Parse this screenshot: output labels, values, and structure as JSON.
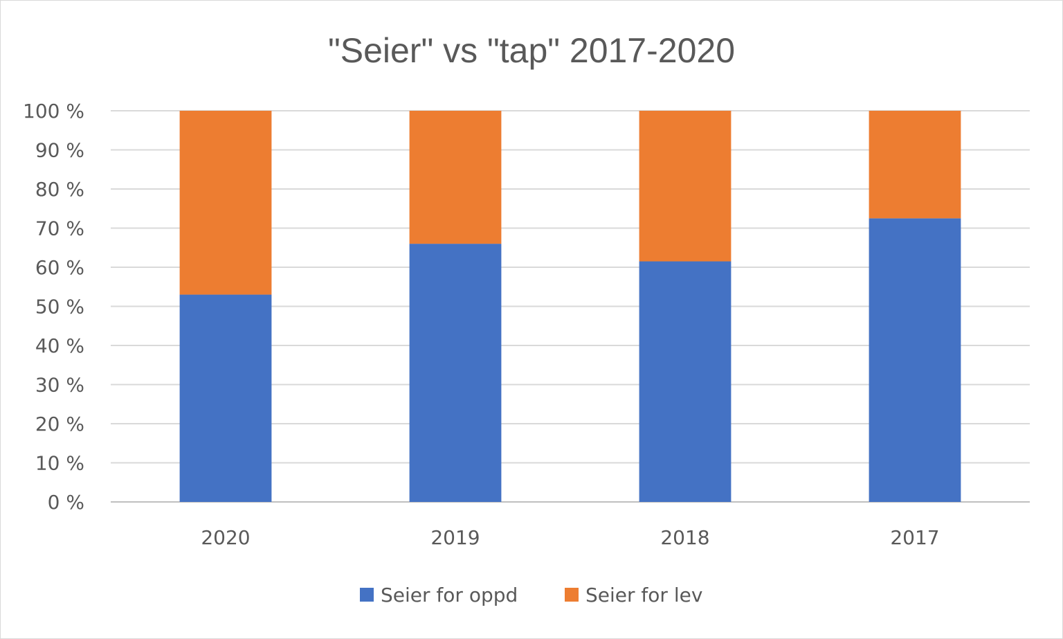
{
  "chart_data": {
    "type": "bar",
    "stacked": true,
    "normalized": true,
    "title": "\"Seier\" vs \"tap\" 2017-2020",
    "categories": [
      "2020",
      "2019",
      "2018",
      "2017"
    ],
    "series": [
      {
        "name": "Seier for oppd",
        "color": "#4472C4",
        "values": [
          53,
          66,
          61.5,
          72.5
        ]
      },
      {
        "name": "Seier for lev",
        "color": "#ED7D31",
        "values": [
          47,
          34,
          38.5,
          27.5
        ]
      }
    ],
    "y_ticks": [
      "0 %",
      "10 %",
      "20 %",
      "30 %",
      "40 %",
      "50 %",
      "60 %",
      "70 %",
      "80 %",
      "90 %",
      "100 %"
    ],
    "ylim": [
      0,
      100
    ],
    "grid": true,
    "legend_position": "bottom"
  }
}
